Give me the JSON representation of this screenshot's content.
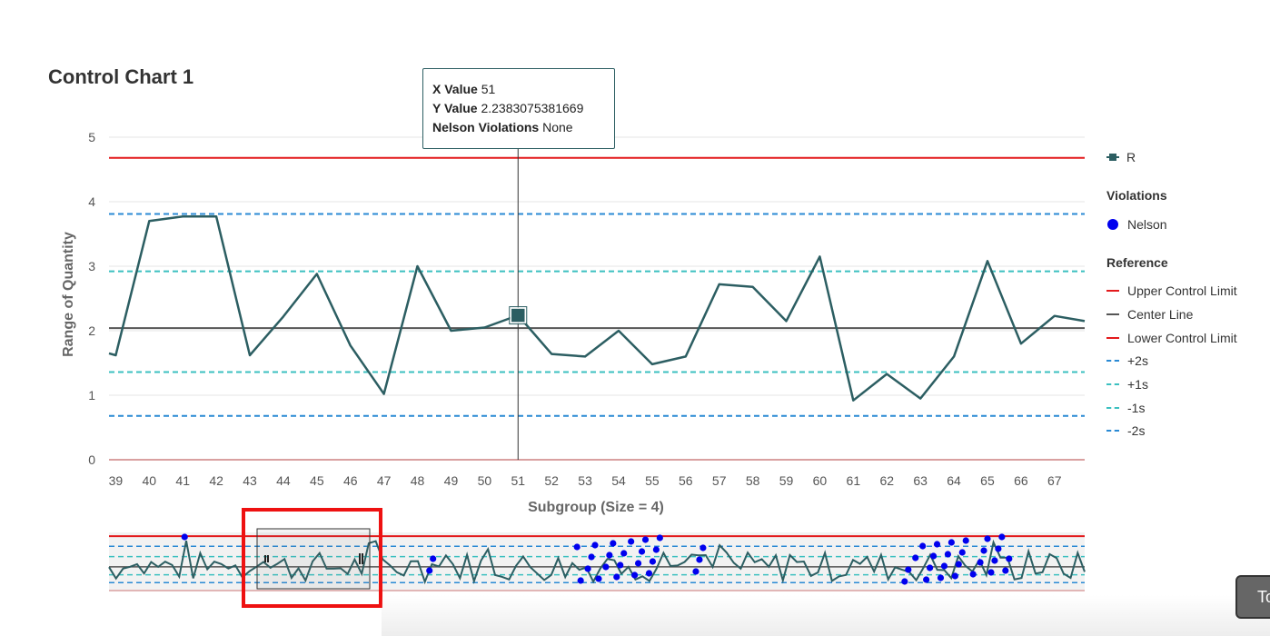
{
  "title": "Control Chart 1",
  "tooltip": {
    "x_label": "X Value",
    "x_value": "51",
    "y_label": "Y Value",
    "y_value": "2.2383075381669",
    "v_label": "Nelson Violations",
    "v_value": "None"
  },
  "legend": {
    "series": "R",
    "violations_title": "Violations",
    "nelson": "Nelson",
    "reference_title": "Reference",
    "ucl": "Upper Control Limit",
    "center": "Center Line",
    "lcl": "Lower Control Limit",
    "plus2s": "+2s",
    "plus1s": "+1s",
    "minus1s": "-1s",
    "minus2s": "-2s"
  },
  "corner_button": "To",
  "chart_data": {
    "type": "line",
    "title": "Control Chart 1",
    "xlabel": "Subgroup (Size = 4)",
    "ylabel": "Range of Quantity",
    "ylim": [
      0,
      5
    ],
    "yticks": [
      0,
      1,
      2,
      3,
      4,
      5
    ],
    "x": [
      38.8,
      39,
      40,
      41,
      42,
      43,
      44,
      45,
      46,
      47,
      48,
      49,
      50,
      51,
      52,
      53,
      54,
      55,
      56,
      57,
      58,
      59,
      60,
      61,
      62,
      63,
      64,
      65,
      66,
      67,
      67.9
    ],
    "series": [
      {
        "name": "R",
        "values": [
          1.65,
          1.62,
          3.7,
          3.77,
          3.77,
          1.62,
          2.22,
          2.88,
          1.77,
          1.02,
          3.0,
          2.0,
          2.05,
          2.24,
          1.64,
          1.6,
          2.0,
          1.48,
          1.6,
          2.72,
          2.68,
          2.15,
          3.15,
          0.92,
          1.33,
          0.95,
          1.6,
          3.08,
          1.8,
          2.23,
          2.15
        ]
      }
    ],
    "reference_lines": {
      "ucl": 4.68,
      "plus2s": 3.81,
      "plus1s": 2.92,
      "center": 2.04,
      "minus1s": 1.36,
      "minus2s": 0.68,
      "lcl": 0
    },
    "highlighted_point": {
      "x": 51,
      "y": 2.2383075381669
    },
    "colors": {
      "series": "#2c5e62",
      "limit": "#e31a1c",
      "center": "#555555",
      "sigma2": "#2a8ad4",
      "sigma1": "#3cc0c0",
      "nelson": "#0000ee"
    },
    "navigator": {
      "count": 140,
      "visible_range": [
        39,
        68
      ],
      "nelson_violation_indices": [
        21,
        89,
        90,
        130,
        131,
        133,
        134,
        135,
        136,
        138,
        139,
        140,
        141,
        142,
        143,
        145,
        146,
        147,
        148,
        149,
        150,
        151,
        152,
        153,
        163,
        164,
        165,
        221,
        222,
        224,
        226,
        227,
        228,
        229,
        230,
        231,
        232,
        233,
        234,
        235,
        236,
        237,
        238,
        240,
        242,
        243,
        244,
        245,
        246,
        247,
        248,
        249,
        250
      ]
    }
  }
}
